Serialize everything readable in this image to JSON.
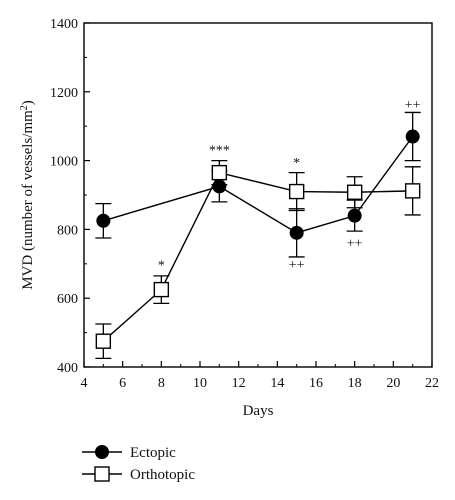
{
  "chart_data": {
    "type": "line",
    "title": "",
    "xlabel": "Days",
    "ylabel_main": "MVD (number of vessels/mm",
    "ylabel_sup": "2",
    "ylabel_tail": ")",
    "xlim": [
      4,
      22
    ],
    "ylim": [
      400,
      1400
    ],
    "xticks": [
      4,
      6,
      8,
      10,
      12,
      14,
      16,
      18,
      20,
      22
    ],
    "yticks": [
      400,
      600,
      800,
      1000,
      1200,
      1400
    ],
    "grid": false,
    "legend_position": "bottom-left",
    "series": [
      {
        "name": "Ectopic",
        "marker": "filled-circle",
        "color": "#000000",
        "x": [
          5,
          11,
          15,
          18,
          21
        ],
        "y": [
          825,
          925,
          790,
          840,
          1070
        ],
        "err": [
          50,
          45,
          70,
          45,
          70
        ]
      },
      {
        "name": "Orthotopic",
        "marker": "open-square",
        "color": "#000000",
        "x": [
          5,
          8,
          11,
          15,
          18,
          21
        ],
        "y": [
          475,
          625,
          965,
          910,
          908,
          912
        ],
        "err": [
          50,
          40,
          35,
          55,
          45,
          70
        ]
      }
    ],
    "annotations": [
      {
        "text": "*",
        "x": 8,
        "y": 683
      },
      {
        "text": "***",
        "x": 11,
        "y": 1018
      },
      {
        "text": "*",
        "x": 15,
        "y": 982
      },
      {
        "text": "++",
        "x": 15,
        "y": 685
      },
      {
        "text": "++",
        "x": 18,
        "y": 748
      },
      {
        "text": "++",
        "x": 21,
        "y": 1150
      }
    ]
  }
}
